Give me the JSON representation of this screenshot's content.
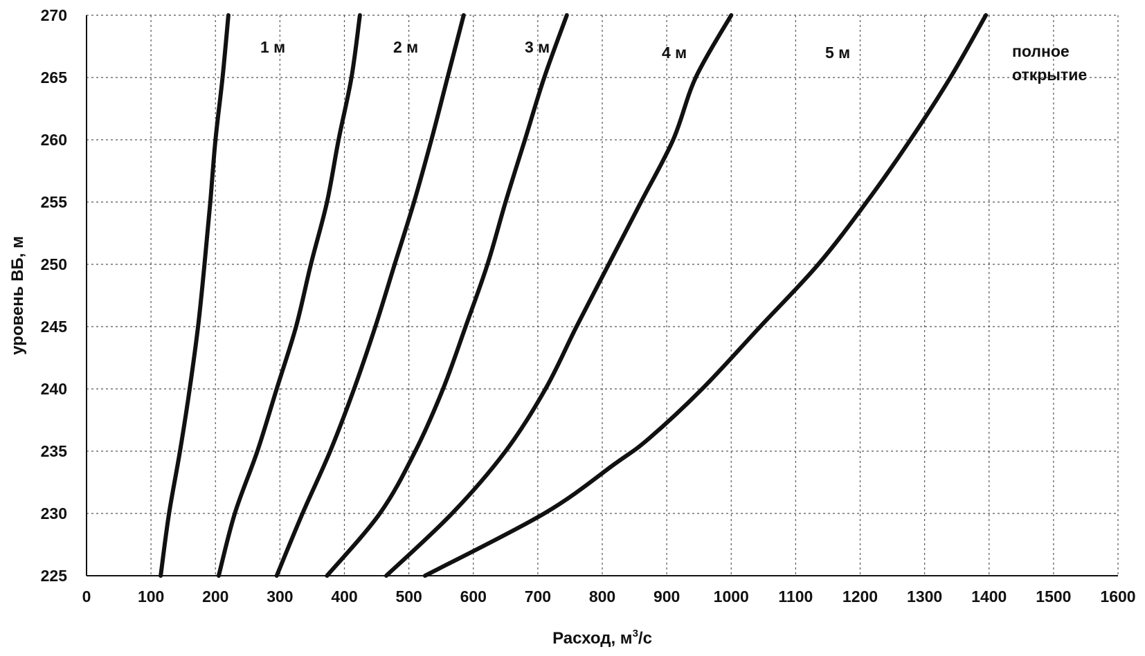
{
  "chart_data": {
    "type": "line",
    "title": "",
    "xlabel": "Расход, м",
    "xlabel_sup": "3",
    "xlabel_suffix": "/с",
    "ylabel": "уровень ВБ, м",
    "xlim": [
      0,
      1600
    ],
    "ylim": [
      225,
      270
    ],
    "xticks": [
      0,
      100,
      200,
      300,
      400,
      500,
      600,
      700,
      800,
      900,
      1000,
      1100,
      1200,
      1300,
      1400,
      1500,
      1600
    ],
    "yticks": [
      225,
      230,
      235,
      240,
      245,
      250,
      255,
      260,
      265,
      270
    ],
    "grid": true,
    "legend": "none",
    "series": [
      {
        "name": "1 м",
        "points": [
          [
            115,
            225
          ],
          [
            128,
            230
          ],
          [
            145,
            235
          ],
          [
            160,
            240
          ],
          [
            173,
            245
          ],
          [
            183,
            250
          ],
          [
            192,
            255
          ],
          [
            200,
            260
          ],
          [
            211,
            265
          ],
          [
            220,
            270
          ]
        ]
      },
      {
        "name": "2 м",
        "points": [
          [
            205,
            225
          ],
          [
            230,
            230
          ],
          [
            265,
            235
          ],
          [
            295,
            240
          ],
          [
            325,
            245
          ],
          [
            348,
            250
          ],
          [
            373,
            255
          ],
          [
            391,
            260
          ],
          [
            411,
            265
          ],
          [
            424,
            270
          ]
        ]
      },
      {
        "name": "3 м",
        "points": [
          [
            295,
            225
          ],
          [
            335,
            230
          ],
          [
            378,
            235
          ],
          [
            415,
            240
          ],
          [
            448,
            245
          ],
          [
            478,
            250
          ],
          [
            508,
            255
          ],
          [
            535,
            260
          ],
          [
            560,
            265
          ],
          [
            585,
            270
          ]
        ]
      },
      {
        "name": "4 м",
        "points": [
          [
            373,
            225
          ],
          [
            455,
            230
          ],
          [
            510,
            235
          ],
          [
            553,
            240
          ],
          [
            588,
            245
          ],
          [
            622,
            250
          ],
          [
            650,
            255
          ],
          [
            680,
            260
          ],
          [
            710,
            265
          ],
          [
            745,
            270
          ]
        ]
      },
      {
        "name": "5 м",
        "points": [
          [
            465,
            225
          ],
          [
            567,
            230
          ],
          [
            650,
            235
          ],
          [
            712,
            240
          ],
          [
            760,
            245
          ],
          [
            810,
            250
          ],
          [
            860,
            255
          ],
          [
            910,
            260
          ],
          [
            945,
            265
          ],
          [
            1000,
            270
          ]
        ]
      },
      {
        "name": "полное открытие",
        "points": [
          [
            525,
            225
          ],
          [
            710,
            230
          ],
          [
            820,
            234
          ],
          [
            872,
            236
          ],
          [
            955,
            240
          ],
          [
            1045,
            245
          ],
          [
            1135,
            250
          ],
          [
            1210,
            255
          ],
          [
            1278,
            260
          ],
          [
            1340,
            265
          ],
          [
            1395,
            270
          ]
        ]
      }
    ],
    "annotations": {
      "s1": "1 м",
      "s2": "2 м",
      "s3": "3 м",
      "s4": "4 м",
      "s5": "5 м",
      "s6_line1": "полное",
      "s6_line2": "открытие"
    }
  }
}
